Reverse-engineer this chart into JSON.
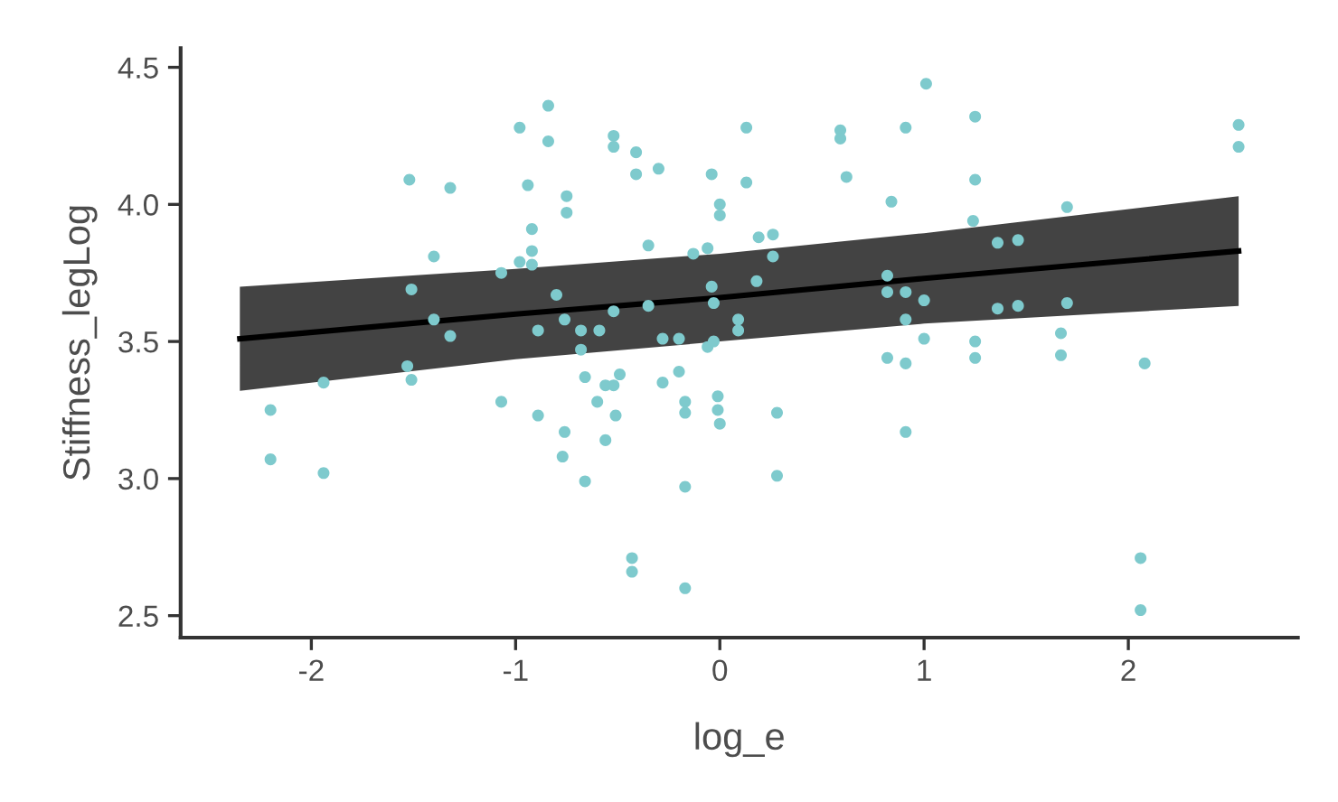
{
  "chart_data": {
    "type": "scatter",
    "xlabel": "log_e",
    "ylabel": "Stiffness_legLog",
    "xlim": [
      -2.64,
      2.83
    ],
    "ylim": [
      2.42,
      4.57
    ],
    "xticks": [
      -2,
      -1,
      0,
      1,
      2
    ],
    "yticks": [
      {
        "value": 2.5,
        "label": "2.5"
      },
      {
        "value": 3.0,
        "label": "3.0"
      },
      {
        "value": 3.5,
        "label": "3.5"
      },
      {
        "value": 4.0,
        "label": "4.0"
      },
      {
        "value": 4.5,
        "label": "4.5"
      }
    ],
    "grid": false,
    "series": [
      {
        "marker": "circle",
        "color": "#7ecacd",
        "x": [
          -0.84,
          -0.84,
          -0.52,
          -0.52,
          -0.41,
          -0.41,
          -0.3,
          -0.04,
          0.13,
          0.13,
          0,
          0,
          -0.75,
          -0.75,
          -0.92,
          -0.92,
          -0.92,
          -0.35,
          -0.13,
          -0.06,
          0.19,
          0.26,
          0.26,
          -0.04,
          0.18,
          -0.8,
          -0.76,
          -0.89,
          -0.68,
          -0.59,
          -0.52,
          -0.35,
          -0.03,
          0.09,
          0.09,
          -0.28,
          -0.2,
          -0.06,
          -0.03,
          -0.68,
          -0.66,
          -0.56,
          -0.49,
          -0.52,
          -0.2,
          -0.28,
          -0.6,
          -0.51,
          -0.17,
          -0.17,
          -0.01,
          -0.01,
          0,
          0.28,
          -0.89,
          -0.76,
          -0.77,
          -0.56,
          -0.66,
          -0.17,
          0.28,
          -0.43,
          -0.43,
          -0.17,
          0.59,
          0.59,
          0.62,
          -1.52,
          -1.32,
          -0.98,
          -0.94,
          -1.4,
          -1.07,
          -0.98,
          -1.51,
          -1.4,
          -1.32,
          -1.53,
          -1.51,
          -1.94,
          -2.2,
          -1.07,
          -2.2,
          -1.94,
          1.01,
          1.25,
          0.91,
          1.25,
          0.84,
          1.7,
          1.24,
          1.36,
          1.46,
          0.82,
          0.82,
          0.91,
          1.0,
          0.91,
          1.36,
          1.46,
          1.7,
          1.0,
          1.25,
          1.25,
          1.67,
          1.67,
          0.82,
          0.91,
          2.08,
          0.91,
          2.06,
          2.06,
          2.54,
          2.54
        ],
        "values": [
          4.36,
          4.23,
          4.25,
          4.21,
          4.19,
          4.11,
          4.13,
          4.11,
          4.28,
          4.08,
          4.0,
          3.96,
          4.03,
          3.97,
          3.91,
          3.83,
          3.78,
          3.85,
          3.82,
          3.84,
          3.88,
          3.89,
          3.81,
          3.7,
          3.72,
          3.67,
          3.58,
          3.54,
          3.54,
          3.54,
          3.61,
          3.63,
          3.64,
          3.58,
          3.54,
          3.51,
          3.51,
          3.48,
          3.5,
          3.47,
          3.37,
          3.34,
          3.38,
          3.34,
          3.39,
          3.35,
          3.28,
          3.23,
          3.28,
          3.24,
          3.3,
          3.25,
          3.2,
          3.24,
          3.23,
          3.17,
          3.08,
          3.14,
          2.99,
          2.97,
          3.01,
          2.71,
          2.66,
          2.6,
          4.27,
          4.24,
          4.1,
          4.09,
          4.06,
          4.28,
          4.07,
          3.81,
          3.75,
          3.79,
          3.69,
          3.58,
          3.52,
          3.41,
          3.36,
          3.35,
          3.25,
          3.28,
          3.07,
          3.02,
          4.44,
          4.32,
          4.28,
          4.09,
          4.01,
          3.99,
          3.94,
          3.86,
          3.87,
          3.74,
          3.68,
          3.68,
          3.65,
          3.58,
          3.62,
          3.63,
          3.64,
          3.51,
          3.5,
          3.44,
          3.53,
          3.45,
          3.44,
          3.42,
          3.42,
          3.17,
          2.71,
          2.52,
          4.29,
          4.21
        ]
      },
      {
        "type": "line",
        "color": "#000000",
        "x": [
          -2.35,
          -1,
          0,
          1,
          2.54
        ],
        "values": [
          3.51,
          3.6,
          3.66,
          3.73,
          3.83
        ],
        "lower": [
          3.32,
          3.435,
          3.5,
          3.565,
          3.63
        ],
        "upper": [
          3.7,
          3.765,
          3.82,
          3.895,
          4.03
        ]
      }
    ]
  }
}
